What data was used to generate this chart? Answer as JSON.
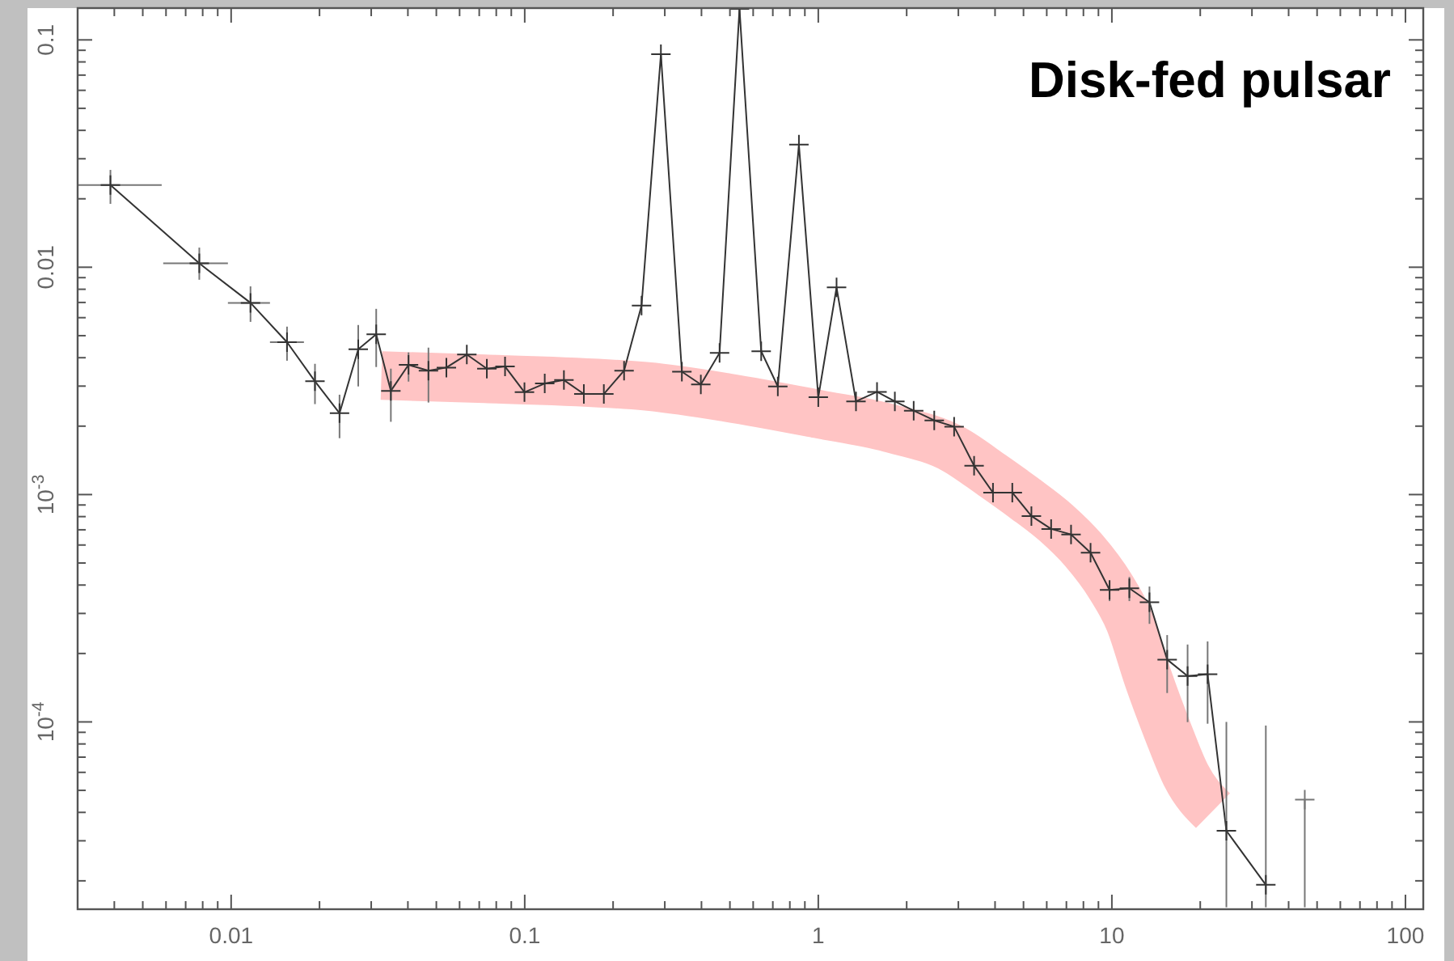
{
  "chart_data": {
    "type": "line",
    "title": "Disk-fed pulsar",
    "log": "xy",
    "marker": "cross",
    "line_style": "solid",
    "grid": false,
    "xlim": [
      0.003,
      115
    ],
    "ylim": [
      1.5e-05,
      0.138
    ],
    "xticks": [
      {
        "value": 0.004,
        "label": null
      },
      {
        "value": 0.005,
        "label": null
      },
      {
        "value": 0.006,
        "label": null
      },
      {
        "value": 0.007,
        "label": null
      },
      {
        "value": 0.008,
        "label": null
      },
      {
        "value": 0.009,
        "label": null
      },
      0.01,
      {
        "value": 0.02,
        "label": null
      },
      {
        "value": 0.03,
        "label": null
      },
      {
        "value": 0.04,
        "label": null
      },
      {
        "value": 0.05,
        "label": null
      },
      {
        "value": 0.06,
        "label": null
      },
      {
        "value": 0.07,
        "label": null
      },
      {
        "value": 0.08,
        "label": null
      },
      {
        "value": 0.09,
        "label": null
      },
      0.1,
      {
        "value": 0.2,
        "label": null
      },
      {
        "value": 0.3,
        "label": null
      },
      {
        "value": 0.4,
        "label": null
      },
      {
        "value": 0.5,
        "label": null
      },
      {
        "value": 0.6,
        "label": null
      },
      {
        "value": 0.7,
        "label": null
      },
      {
        "value": 0.8,
        "label": null
      },
      {
        "value": 0.9,
        "label": null
      },
      1,
      {
        "value": 2,
        "label": null
      },
      {
        "value": 3,
        "label": null
      },
      {
        "value": 4,
        "label": null
      },
      {
        "value": 5,
        "label": null
      },
      {
        "value": 6,
        "label": null
      },
      {
        "value": 7,
        "label": null
      },
      {
        "value": 8,
        "label": null
      },
      {
        "value": 9,
        "label": null
      },
      10,
      {
        "value": 20,
        "label": null
      },
      {
        "value": 30,
        "label": null
      },
      {
        "value": 40,
        "label": null
      },
      {
        "value": 50,
        "label": null
      },
      {
        "value": 60,
        "label": null
      },
      {
        "value": 70,
        "label": null
      },
      {
        "value": 80,
        "label": null
      },
      {
        "value": 90,
        "label": null
      },
      100
    ],
    "yticks": [
      {
        "value": 2e-05,
        "label": null
      },
      {
        "value": 3e-05,
        "label": null
      },
      {
        "value": 4e-05,
        "label": null
      },
      {
        "value": 5e-05,
        "label": null
      },
      {
        "value": 6e-05,
        "label": null
      },
      {
        "value": 7e-05,
        "label": null
      },
      {
        "value": 8e-05,
        "label": null
      },
      {
        "value": 9e-05,
        "label": null
      },
      {
        "value": 0.0001,
        "label": "10$^{-4}$"
      },
      {
        "value": 0.0002,
        "label": null
      },
      {
        "value": 0.0003,
        "label": null
      },
      {
        "value": 0.0004,
        "label": null
      },
      {
        "value": 0.0005,
        "label": null
      },
      {
        "value": 0.0006,
        "label": null
      },
      {
        "value": 0.0007,
        "label": null
      },
      {
        "value": 0.0008,
        "label": null
      },
      {
        "value": 0.0009,
        "label": null
      },
      {
        "value": 0.001,
        "label": "10$^{-3}$"
      },
      {
        "value": 0.002,
        "label": null
      },
      {
        "value": 0.003,
        "label": null
      },
      {
        "value": 0.004,
        "label": null
      },
      {
        "value": 0.005,
        "label": null
      },
      {
        "value": 0.006,
        "label": null
      },
      {
        "value": 0.007,
        "label": null
      },
      {
        "value": 0.008,
        "label": null
      },
      {
        "value": 0.009,
        "label": null
      },
      0.01,
      {
        "value": 0.02,
        "label": null
      },
      {
        "value": 0.03,
        "label": null
      },
      {
        "value": 0.04,
        "label": null
      },
      {
        "value": 0.05,
        "label": null
      },
      {
        "value": 0.06,
        "label": null
      },
      {
        "value": 0.07,
        "label": null
      },
      {
        "value": 0.08,
        "label": null
      },
      {
        "value": 0.09,
        "label": null
      },
      0.1
    ],
    "series": [
      {
        "type": "line",
        "color": "#ffc4c4",
        "marker": "none",
        "x": [
          0.0325,
          0.0733,
          0.261,
          0.491,
          1.0,
          1.747,
          2.9,
          3.9,
          5.0,
          6.46,
          8.0,
          9.9,
          11.5,
          13.3,
          15.5,
          17.9,
          22.1
        ],
        "values": [
          0.00334,
          0.00323,
          0.00299,
          0.00267,
          0.00226,
          0.00196,
          0.00158,
          0.00122,
          0.00097,
          0.00075,
          0.00057,
          0.000394,
          0.000275,
          0.000155,
          9.1e-05,
          5.81e-05,
          4.07e-05
        ]
      },
      {
        "type": "scatter",
        "color": "#777777",
        "x": [
          45.4
        ],
        "values": [
          4.55e-05
        ],
        "errors": [
          [
            1.53e-05,
            4.55e-05
          ]
        ]
      },
      {
        "color": "#333333",
        "x": [
          0.00388,
          0.00779,
          0.01164,
          0.0155,
          0.0193,
          0.0234,
          0.0271,
          0.0312,
          0.035,
          0.0402,
          0.047,
          0.0541,
          0.0635,
          0.0743,
          0.0857,
          0.0998,
          0.117,
          0.136,
          0.159,
          0.186,
          0.218,
          0.25,
          0.291,
          0.343,
          0.398,
          0.461,
          0.539,
          0.639,
          0.728,
          0.859,
          1.0,
          1.154,
          1.344,
          1.585,
          1.823,
          2.113,
          2.483,
          2.902,
          3.394,
          3.936,
          4.58,
          5.32,
          6.21,
          7.26,
          8.46,
          9.82,
          11.47,
          13.43,
          15.43,
          18.11,
          21.19,
          24.55,
          33.45
        ],
        "values": [
          0.023,
          0.0104,
          0.00697,
          0.00468,
          0.00315,
          0.00228,
          0.00436,
          0.00507,
          0.00286,
          0.00372,
          0.00351,
          0.00362,
          0.00413,
          0.00358,
          0.00366,
          0.00282,
          0.00308,
          0.00319,
          0.00277,
          0.00277,
          0.00351,
          0.00678,
          0.0865,
          0.00347,
          0.00305,
          0.0042,
          0.137,
          0.00427,
          0.00299,
          0.0346,
          0.00268,
          0.00815,
          0.00257,
          0.00283,
          0.00257,
          0.00234,
          0.00212,
          0.00199,
          0.00134,
          0.00102,
          0.00102,
          0.000805,
          0.000706,
          0.000668,
          0.000555,
          0.000381,
          0.000387,
          0.000336,
          0.000188,
          0.000159,
          0.000162,
          3.32e-05,
          1.92e-05
        ],
        "errors": [
          [
            0.019,
            0.0268
          ],
          [
            0.00881,
            0.0122
          ],
          [
            0.00575,
            0.00824
          ],
          [
            0.00388,
            0.00548
          ],
          [
            0.0025,
            0.00376
          ],
          [
            0.00177,
            0.00275
          ],
          [
            0.00299,
            0.00557
          ],
          [
            0.00364,
            0.00656
          ],
          [
            0.00209,
            0.00358
          ],
          [
            0.00314,
            0.00422
          ],
          [
            0.00254,
            0.00443
          ],
          null,
          null,
          null,
          null,
          null,
          null,
          null,
          null,
          null,
          null,
          null,
          null,
          null,
          null,
          null,
          null,
          null,
          null,
          null,
          null,
          null,
          null,
          null,
          null,
          null,
          null,
          null,
          null,
          null,
          null,
          null,
          null,
          null,
          null,
          [
            0.00034,
            0.000416
          ],
          [
            0.00034,
            0.000434
          ],
          [
            0.00027,
            0.000394
          ],
          [
            0.000134,
            0.000241
          ],
          [
            9.98e-05,
            0.000219
          ],
          [
            9.82e-05,
            0.000226
          ],
          [
            1.53e-05,
            0.0001
          ],
          [
            1.53e-05,
            9.64e-05
          ]
        ],
        "xerrors": [
          [
            0.003,
            0.0058
          ],
          [
            0.00587,
            0.00975
          ],
          [
            0.00975,
            0.01356
          ],
          [
            0.01356,
            0.0177
          ],
          null,
          null,
          null,
          null,
          null,
          null,
          null,
          null,
          null,
          null,
          null,
          null,
          null,
          null,
          null,
          null,
          null,
          null,
          null,
          null,
          null,
          null,
          null,
          null,
          null,
          null,
          null,
          null,
          null,
          null,
          null,
          null,
          null,
          null,
          null,
          null,
          null,
          null,
          null,
          null,
          null,
          null,
          null,
          null,
          null,
          null,
          null,
          null,
          null
        ]
      }
    ]
  }
}
